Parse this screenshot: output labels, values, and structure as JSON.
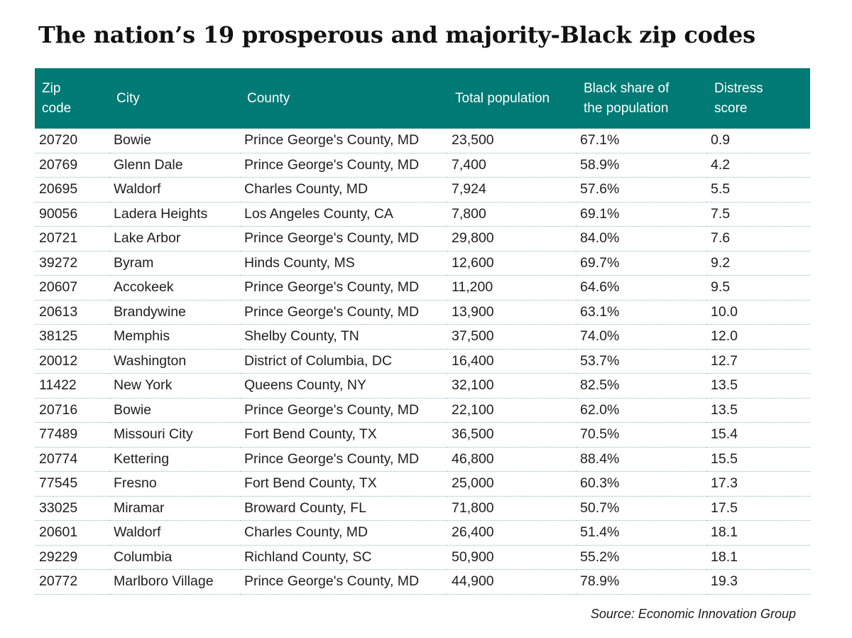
{
  "title": "The nation’s 19 prosperous and majority-Black zip codes",
  "headers": [
    [
      "Zip",
      "code"
    ],
    [
      "City"
    ],
    [
      "County"
    ],
    [
      "Total population"
    ],
    [
      "Black share of",
      "the population"
    ],
    [
      "Distress",
      "score"
    ]
  ],
  "rows": [
    [
      "20720",
      "Bowie",
      "Prince George's County, MD",
      "23,500",
      "67.1%",
      "0.9"
    ],
    [
      "20769",
      "Glenn Dale",
      "Prince George's County, MD",
      "7,400",
      "58.9%",
      "4.2"
    ],
    [
      "20695",
      "Waldorf",
      "Charles County, MD",
      "7,924",
      "57.6%",
      "5.5"
    ],
    [
      "90056",
      "Ladera Heights",
      "Los Angeles County, CA",
      "7,800",
      "69.1%",
      "7.5"
    ],
    [
      "20721",
      "Lake Arbor",
      "Prince George's County, MD",
      "29,800",
      "84.0%",
      "7.6"
    ],
    [
      "39272",
      "Byram",
      "Hinds County, MS",
      "12,600",
      "69.7%",
      "9.2"
    ],
    [
      "20607",
      "Accokeek",
      "Prince George's County, MD",
      "11,200",
      "64.6%",
      "9.5"
    ],
    [
      "20613",
      "Brandywine",
      "Prince George's County, MD",
      "13,900",
      "63.1%",
      "10.0"
    ],
    [
      "38125",
      "Memphis",
      "Shelby County, TN",
      "37,500",
      "74.0%",
      "12.0"
    ],
    [
      "20012",
      "Washington",
      "District of Columbia, DC",
      "16,400",
      "53.7%",
      "12.7"
    ],
    [
      "11422",
      "New York",
      "Queens County, NY",
      "32,100",
      "82.5%",
      "13.5"
    ],
    [
      "20716",
      "Bowie",
      "Prince George's County, MD",
      "22,100",
      "62.0%",
      "13.5"
    ],
    [
      "77489",
      "Missouri City",
      "Fort Bend County, TX",
      "36,500",
      "70.5%",
      "15.4"
    ],
    [
      "20774",
      "Kettering",
      "Prince George's County, MD",
      "46,800",
      "88.4%",
      "15.5"
    ],
    [
      "77545",
      "Fresno",
      "Fort Bend County, TX",
      "25,000",
      "60.3%",
      "17.3"
    ],
    [
      "33025",
      "Miramar",
      "Broward County, FL",
      "71,800",
      "50.7%",
      "17.5"
    ],
    [
      "20601",
      "Waldorf",
      "Charles County, MD",
      "26,400",
      "51.4%",
      "18.1"
    ],
    [
      "29229",
      "Columbia",
      "Richland County, SC",
      "50,900",
      "55.2%",
      "18.1"
    ],
    [
      "20772",
      "Marlboro Village",
      "Prince George's County, MD",
      "44,900",
      "78.9%",
      "19.3"
    ]
  ],
  "source": "Source: Economic Innovation Group",
  "colors": {
    "header_bg": "#007a74",
    "header_text": "#ffffff",
    "row_separator": "#8fb8b4"
  }
}
